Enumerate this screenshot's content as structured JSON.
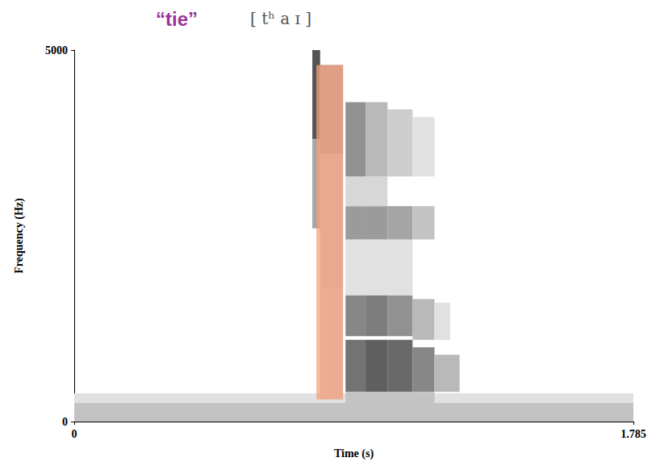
{
  "chart_data": {
    "type": "spectrogram",
    "title": "“tie”",
    "subtitle": "[ tʰ a ɪ ]",
    "x_label": "Time (s)",
    "y_label": "Frequency (Hz)",
    "xlim": [
      0,
      1.785
    ],
    "ylim": [
      0,
      5000
    ],
    "xticks": [
      0,
      1.785
    ],
    "yticks": [
      0,
      5000
    ],
    "cells": [
      [
        0,
        1.785,
        0,
        250,
        0.3
      ],
      [
        0,
        1.785,
        250,
        380,
        0.15
      ],
      [
        0.76,
        0.785,
        3800,
        5000,
        0.85
      ],
      [
        0.76,
        0.785,
        2600,
        3800,
        0.45
      ],
      [
        0.785,
        0.858,
        3600,
        4800,
        0.5
      ],
      [
        0.785,
        0.858,
        1800,
        3600,
        0.3
      ],
      [
        0.785,
        0.858,
        300,
        1800,
        0.25
      ],
      [
        0.866,
        0.93,
        400,
        1100,
        0.7
      ],
      [
        0.93,
        1.0,
        400,
        1100,
        0.8
      ],
      [
        1.0,
        1.08,
        400,
        1100,
        0.75
      ],
      [
        1.08,
        1.15,
        400,
        1000,
        0.6
      ],
      [
        1.15,
        1.23,
        400,
        900,
        0.35
      ],
      [
        0.866,
        1.15,
        250,
        400,
        0.3
      ],
      [
        0.866,
        0.93,
        1150,
        1700,
        0.6
      ],
      [
        0.93,
        1.0,
        1150,
        1700,
        0.65
      ],
      [
        1.0,
        1.08,
        1150,
        1700,
        0.55
      ],
      [
        1.08,
        1.15,
        1100,
        1650,
        0.35
      ],
      [
        1.15,
        1.2,
        1100,
        1600,
        0.15
      ],
      [
        0.866,
        1.08,
        1700,
        2450,
        0.15
      ],
      [
        0.866,
        0.93,
        2450,
        2900,
        0.5
      ],
      [
        0.93,
        1.0,
        2450,
        2900,
        0.5
      ],
      [
        1.0,
        1.08,
        2450,
        2900,
        0.45
      ],
      [
        1.08,
        1.15,
        2450,
        2900,
        0.3
      ],
      [
        0.866,
        1.0,
        2900,
        3300,
        0.2
      ],
      [
        0.866,
        0.93,
        3300,
        4300,
        0.55
      ],
      [
        0.93,
        1.0,
        3300,
        4300,
        0.35
      ],
      [
        1.0,
        1.08,
        3300,
        4200,
        0.25
      ],
      [
        1.08,
        1.15,
        3300,
        4100,
        0.15
      ]
    ],
    "highlight": [
      0.773,
      0.858,
      300,
      4800
    ]
  }
}
